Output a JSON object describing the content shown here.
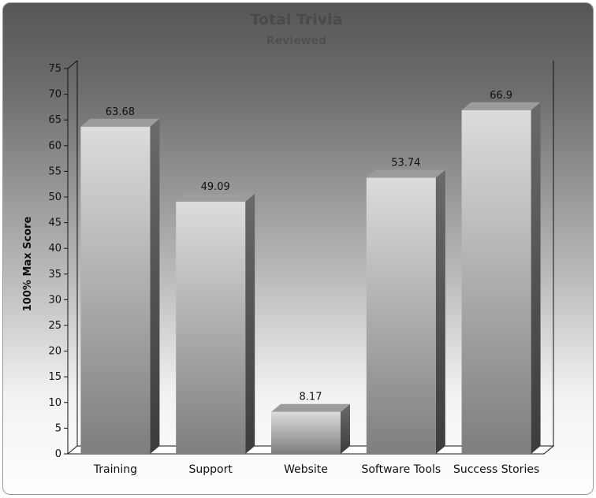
{
  "chart_data": {
    "type": "bar",
    "title": "Total Trivia",
    "subtitle": "Reviewed",
    "xlabel": "",
    "ylabel": "100% Max Score",
    "categories": [
      "Training",
      "Support",
      "Website",
      "Software Tools",
      "Success Stories"
    ],
    "values": [
      63.68,
      49.09,
      8.17,
      53.74,
      66.9
    ],
    "data_labels": [
      "63.68",
      "49.09",
      "8.17",
      "53.74",
      "66.9"
    ],
    "ylim": [
      0,
      75
    ],
    "yticks": [
      0,
      5,
      10,
      15,
      20,
      25,
      30,
      35,
      40,
      45,
      50,
      55,
      60,
      65,
      70,
      75
    ],
    "grid": false,
    "legend": "none",
    "style": "3d",
    "colors": {
      "bar_light": "#d4d4d4",
      "bar_dark": "#7a7a7a",
      "bar_side": "#555555",
      "bar_top": "#9a9a9a"
    }
  }
}
